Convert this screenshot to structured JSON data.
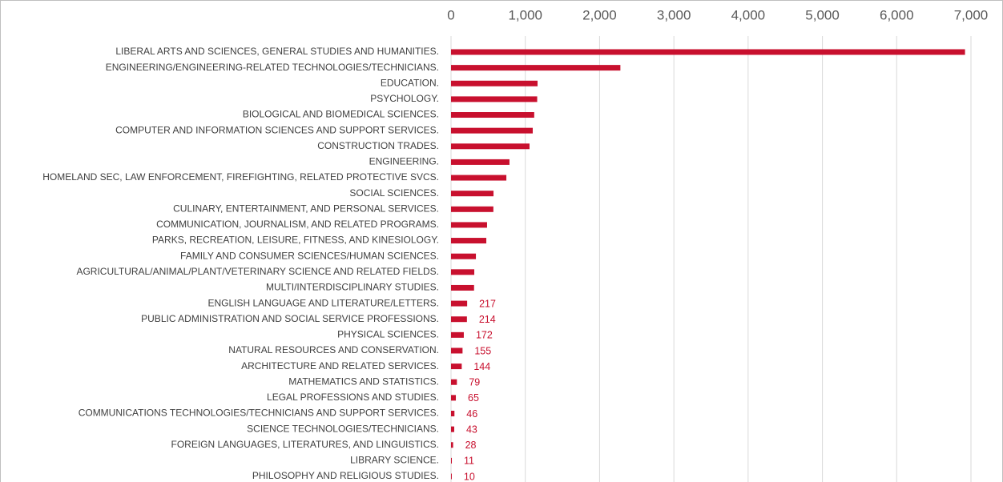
{
  "chart_data": {
    "type": "barh",
    "categories": [
      "LIBERAL ARTS AND SCIENCES, GENERAL STUDIES AND HUMANITIES.",
      "ENGINEERING/ENGINEERING-RELATED TECHNOLOGIES/TECHNICIANS.",
      "EDUCATION.",
      "PSYCHOLOGY.",
      "BIOLOGICAL AND BIOMEDICAL SCIENCES.",
      "COMPUTER AND INFORMATION SCIENCES AND SUPPORT SERVICES.",
      "CONSTRUCTION TRADES.",
      "ENGINEERING.",
      "HOMELAND SEC, LAW ENFORCEMENT, FIREFIGHTING, RELATED PROTECTIVE SVCS.",
      "SOCIAL SCIENCES.",
      "CULINARY, ENTERTAINMENT, AND PERSONAL SERVICES.",
      "COMMUNICATION, JOURNALISM, AND RELATED PROGRAMS.",
      "PARKS, RECREATION, LEISURE, FITNESS, AND KINESIOLOGY.",
      "FAMILY AND CONSUMER SCIENCES/HUMAN SCIENCES.",
      "AGRICULTURAL/ANIMAL/PLANT/VETERINARY SCIENCE AND RELATED FIELDS.",
      "MULTI/INTERDISCIPLINARY STUDIES.",
      "ENGLISH LANGUAGE AND LITERATURE/LETTERS.",
      "PUBLIC ADMINISTRATION AND SOCIAL SERVICE PROFESSIONS.",
      "PHYSICAL SCIENCES.",
      "NATURAL RESOURCES AND CONSERVATION.",
      "ARCHITECTURE AND RELATED SERVICES.",
      "MATHEMATICS AND STATISTICS.",
      "LEGAL PROFESSIONS AND STUDIES.",
      "COMMUNICATIONS TECHNOLOGIES/TECHNICIANS AND SUPPORT SERVICES.",
      "SCIENCE TECHNOLOGIES/TECHNICIANS.",
      "FOREIGN LANGUAGES, LITERATURES, AND LINGUISTICS.",
      "LIBRARY SCIENCE.",
      "PHILOSOPHY AND RELIGIOUS STUDIES."
    ],
    "values": [
      6920,
      2280,
      1165,
      1160,
      1120,
      1100,
      1057,
      787,
      745,
      572,
      570,
      485,
      475,
      335,
      313,
      310,
      217,
      214,
      172,
      155,
      144,
      79,
      65,
      46,
      43,
      28,
      11,
      10
    ],
    "value_labels": [
      null,
      null,
      null,
      null,
      null,
      null,
      null,
      null,
      null,
      null,
      null,
      null,
      null,
      null,
      null,
      null,
      "217",
      "214",
      "172",
      "155",
      "144",
      "79",
      "65",
      "46",
      "43",
      "28",
      "11",
      "10"
    ],
    "color": "#c8102e",
    "xlim": [
      0,
      7000
    ],
    "xticks": [
      0,
      {
        "value": 1000,
        "label": "1,000"
      },
      {
        "value": 2000,
        "label": "2,000"
      },
      {
        "value": 3000,
        "label": "3,000"
      },
      {
        "value": 4000,
        "label": "4,000"
      },
      {
        "value": 5000,
        "label": "5,000"
      },
      {
        "value": 6000,
        "label": "6,000"
      },
      {
        "value": 7000,
        "label": "7,000"
      }
    ],
    "grid": true
  }
}
